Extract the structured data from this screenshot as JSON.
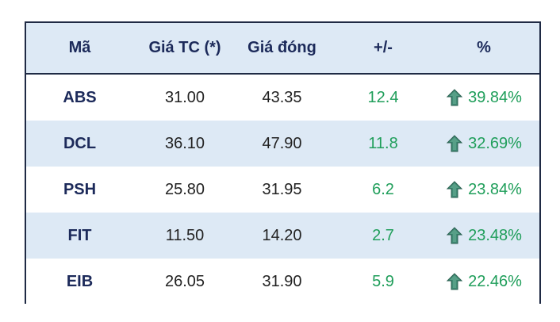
{
  "table": {
    "columns": [
      "Mã",
      "Giá TC (*)",
      "Giá đóng",
      "+/-",
      "%"
    ],
    "rows": [
      {
        "code": "ABS",
        "ref_price": "31.00",
        "close_price": "43.35",
        "change": "12.4",
        "percent": "39.84%"
      },
      {
        "code": "DCL",
        "ref_price": "36.10",
        "close_price": "47.90",
        "change": "11.8",
        "percent": "32.69%"
      },
      {
        "code": "PSH",
        "ref_price": "25.80",
        "close_price": "31.95",
        "change": "6.2",
        "percent": "23.84%"
      },
      {
        "code": "FIT",
        "ref_price": "11.50",
        "close_price": "14.20",
        "change": "2.7",
        "percent": "23.48%"
      },
      {
        "code": "EIB",
        "ref_price": "26.05",
        "close_price": "31.90",
        "change": "5.9",
        "percent": "22.46%"
      }
    ]
  },
  "colors": {
    "header_bg": "#dde9f5",
    "alt_row_bg": "#dde9f5",
    "border": "#1f2a44",
    "header_text": "#1c2a5a",
    "positive": "#1f9e5a",
    "arrow_fill": "#3f8a73"
  },
  "icons": {
    "trend": "up-arrow-icon"
  }
}
